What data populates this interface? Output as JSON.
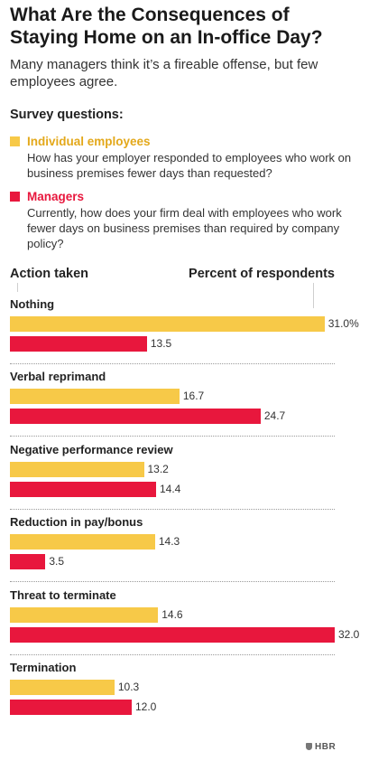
{
  "title": "What Are the Consequences of Staying Home on an In-office Day?",
  "subtitle": "Many managers think it’s a fireable offense, but few employees agree.",
  "survey_heading": "Survey questions:",
  "legend": [
    {
      "name": "Individual employees",
      "color": "#f7c948",
      "name_color": "#e3a81a",
      "question": "How has your employer responded to employees who work on business premises fewer days than requested?"
    },
    {
      "name": "Managers",
      "color": "#e8173d",
      "name_color": "#e8173d",
      "question": "Currently, how does your firm deal with employees who work fewer days on business premises than required by company policy?"
    }
  ],
  "header_left": "Action taken",
  "header_right": "Percent of respondents",
  "brand": "HBR",
  "chart_data": {
    "type": "bar",
    "orientation": "horizontal",
    "xlim": [
      0,
      32
    ],
    "categories": [
      "Nothing",
      "Verbal reprimand",
      "Negative performance review",
      "Reduction in pay/bonus",
      "Threat to terminate",
      "Termination"
    ],
    "series": [
      {
        "name": "Individual employees",
        "color": "#f7c948",
        "values": [
          31.0,
          16.7,
          13.2,
          14.3,
          14.6,
          10.3
        ],
        "labels": [
          "31.0%",
          "16.7",
          "13.2",
          "14.3",
          "14.6",
          "10.3"
        ]
      },
      {
        "name": "Managers",
        "color": "#e8173d",
        "values": [
          13.5,
          24.7,
          14.4,
          3.5,
          32.0,
          12.0
        ],
        "labels": [
          "13.5",
          "24.7",
          "14.4",
          "3.5",
          "32.0",
          "12.0"
        ]
      }
    ]
  }
}
